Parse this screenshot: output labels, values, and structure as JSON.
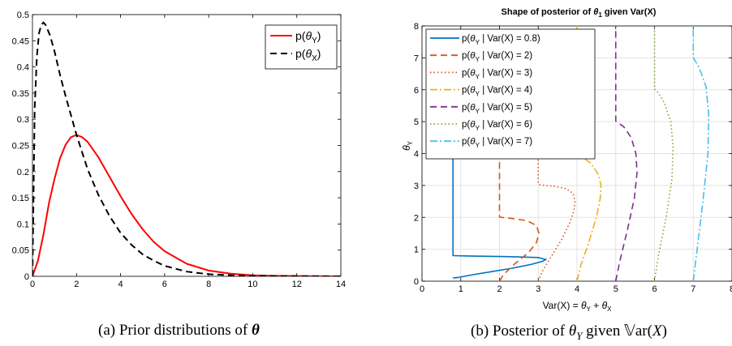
{
  "captions": {
    "a": {
      "prefix": "(a) Prior distributions of ",
      "sym": "θ"
    },
    "b": {
      "prefix": "(b) Posterior of ",
      "sym": "θ",
      "sub": "Y",
      "mid": " given ",
      "var_sym": "𝕍",
      "var_rest": "ar(",
      "var_x": "X",
      "var_end": ")"
    }
  },
  "chart_data": [
    {
      "type": "line",
      "title": "",
      "xlabel": "",
      "ylabel": "",
      "xlim": [
        0,
        14
      ],
      "ylim": [
        0,
        0.5
      ],
      "xticks": [
        0,
        2,
        4,
        6,
        8,
        10,
        12,
        14
      ],
      "xtick_labels": [
        "0",
        "2",
        "4",
        "6",
        "8",
        "10",
        "12",
        "14"
      ],
      "yticks": [
        0,
        0.05,
        0.1,
        0.15,
        0.2,
        0.25,
        0.3,
        0.35,
        0.4,
        0.45,
        0.5
      ],
      "ytick_labels": [
        "0",
        "0.05",
        "0.1",
        "0.15",
        "0.2",
        "0.25",
        "0.3",
        "0.35",
        "0.4",
        "0.45",
        "0.5"
      ],
      "grid": false,
      "legend": "top-right",
      "series": [
        {
          "legend_pre": "p(",
          "legend_sym": "θ",
          "legend_sub": "Y",
          "legend_post": ")",
          "color": "#ff0000",
          "dash": "solid",
          "x": [
            0,
            0.25,
            0.5,
            0.75,
            1,
            1.25,
            1.5,
            1.75,
            2,
            2.25,
            2.5,
            3,
            3.5,
            4,
            4.5,
            5,
            5.5,
            6,
            7,
            8,
            9,
            10,
            11,
            12,
            13,
            14
          ],
          "y": [
            0,
            0.03,
            0.08,
            0.14,
            0.186,
            0.225,
            0.251,
            0.266,
            0.27,
            0.266,
            0.257,
            0.227,
            0.19,
            0.153,
            0.119,
            0.09,
            0.066,
            0.048,
            0.024,
            0.011,
            0.005,
            0.002,
            0.001,
            0.0005,
            0.0002,
            0
          ]
        },
        {
          "legend_pre": "p(",
          "legend_sym": "θ",
          "legend_sub": "X",
          "legend_post": ")",
          "color": "#000000",
          "dash": "dashed",
          "x": [
            0,
            0.1,
            0.2,
            0.3,
            0.4,
            0.5,
            0.6,
            0.8,
            1,
            1.25,
            1.5,
            2,
            2.5,
            3,
            3.5,
            4,
            4.5,
            5,
            5.5,
            6,
            7,
            8,
            9,
            10,
            11,
            14
          ],
          "y": [
            0,
            0.32,
            0.42,
            0.465,
            0.48,
            0.485,
            0.48,
            0.46,
            0.43,
            0.385,
            0.345,
            0.27,
            0.205,
            0.155,
            0.115,
            0.083,
            0.06,
            0.042,
            0.03,
            0.02,
            0.009,
            0.004,
            0.002,
            0.001,
            0.0004,
            0
          ]
        }
      ]
    },
    {
      "type": "line",
      "title_pre": "Shape of posterior of ",
      "title_sym": "θ",
      "title_sub": "1",
      "title_post": " given Var(X)",
      "xlabel_pre": "Var(X) = ",
      "xlabel_sym1": "θ",
      "xlabel_sub1": "Y",
      "xlabel_mid": " + ",
      "xlabel_sym2": "θ",
      "xlabel_sub2": "X",
      "ylabel_sym": "θ",
      "ylabel_sub": "Y",
      "xlim": [
        0,
        8
      ],
      "ylim": [
        0,
        8
      ],
      "xticks": [
        0,
        1,
        2,
        3,
        4,
        5,
        6,
        7,
        8
      ],
      "xtick_labels": [
        "0",
        "1",
        "2",
        "3",
        "4",
        "5",
        "6",
        "7",
        "8"
      ],
      "yticks": [
        0,
        1,
        2,
        3,
        4,
        5,
        6,
        7,
        8
      ],
      "ytick_labels": [
        "0",
        "1",
        "2",
        "3",
        "4",
        "5",
        "6",
        "7",
        "8"
      ],
      "grid": true,
      "legend": "top-left",
      "series": [
        {
          "legend_pre": "p(",
          "legend_sym": "θ",
          "legend_sub": "Y",
          "legend_post": " | Var(X) = 0.8)",
          "color": "#0072bd",
          "dash": "solid",
          "x": [
            0.8,
            0.95,
            1.3,
            1.8,
            2.3,
            2.8,
            3.1,
            3.2,
            3.0,
            2.2,
            1.2,
            0.82,
            0.8,
            0.8
          ],
          "y": [
            0.1,
            0.12,
            0.2,
            0.3,
            0.4,
            0.52,
            0.62,
            0.68,
            0.74,
            0.77,
            0.79,
            0.8,
            0.8,
            4.0
          ]
        },
        {
          "legend_pre": "p(",
          "legend_sym": "θ",
          "legend_sub": "Y",
          "legend_post": " | Var(X) = 2)",
          "color": "#d95319",
          "dash": "dashed",
          "x": [
            2.0,
            2.1,
            2.4,
            2.75,
            2.95,
            3.02,
            2.95,
            2.7,
            2.3,
            2.05,
            2.0,
            2.0,
            2.0
          ],
          "y": [
            0,
            0.2,
            0.55,
            0.9,
            1.2,
            1.5,
            1.75,
            1.9,
            1.97,
            2.0,
            2.02,
            3.0,
            4.0
          ]
        },
        {
          "legend_pre": "p(",
          "legend_sym": "θ",
          "legend_sub": "Y",
          "legend_post": " | Var(X) = 3)",
          "color": "#d95319",
          "dash": "dotted",
          "x": [
            3.0,
            3.1,
            3.35,
            3.6,
            3.8,
            3.92,
            3.95,
            3.9,
            3.72,
            3.45,
            3.2,
            3.05,
            3.0,
            3.0
          ],
          "y": [
            0,
            0.3,
            0.8,
            1.3,
            1.8,
            2.2,
            2.5,
            2.75,
            2.9,
            2.97,
            3.0,
            3.02,
            3.05,
            4.0
          ]
        },
        {
          "legend_pre": "p(",
          "legend_sym": "θ",
          "legend_sub": "Y",
          "legend_post": " | Var(X) = 4)",
          "color": "#edb120",
          "dash": "dashdot",
          "x": [
            4.0,
            4.1,
            4.3,
            4.5,
            4.6,
            4.62,
            4.55,
            4.35,
            4.1,
            4.02,
            4.0,
            4.0
          ],
          "y": [
            0,
            0.5,
            1.2,
            2.0,
            2.6,
            3.0,
            3.35,
            3.7,
            3.92,
            3.98,
            4.02,
            8.0
          ]
        },
        {
          "legend_pre": "p(",
          "legend_sym": "θ",
          "legend_sub": "Y",
          "legend_post": " | Var(X) = 5)",
          "color": "#7e2f8e",
          "dash": "dashed",
          "x": [
            5.0,
            5.1,
            5.3,
            5.48,
            5.55,
            5.52,
            5.4,
            5.2,
            5.05,
            5.0,
            5.0
          ],
          "y": [
            0,
            0.6,
            1.6,
            2.6,
            3.4,
            4.0,
            4.5,
            4.85,
            4.97,
            5.02,
            8.0
          ]
        },
        {
          "legend_pre": "p(",
          "legend_sym": "θ",
          "legend_sub": "Y",
          "legend_post": " | Var(X) = 6)",
          "color": "#77ac30",
          "dash": "dotted",
          "x": [
            6.0,
            6.1,
            6.3,
            6.45,
            6.48,
            6.42,
            6.25,
            6.08,
            6.0,
            6.0
          ],
          "y": [
            0,
            0.8,
            2.0,
            3.2,
            4.2,
            5.0,
            5.6,
            5.93,
            6.02,
            8.0
          ]
        },
        {
          "legend_pre": "p(",
          "legend_sym": "θ",
          "legend_sub": "Y",
          "legend_post": " | Var(X) = 7)",
          "color": "#4dbeee",
          "dash": "dashdot",
          "x": [
            7.0,
            7.1,
            7.25,
            7.38,
            7.4,
            7.33,
            7.15,
            7.03,
            7.0,
            7.0
          ],
          "y": [
            0,
            1.0,
            2.5,
            4.0,
            5.2,
            6.1,
            6.7,
            6.95,
            7.02,
            8.0
          ]
        }
      ]
    }
  ]
}
